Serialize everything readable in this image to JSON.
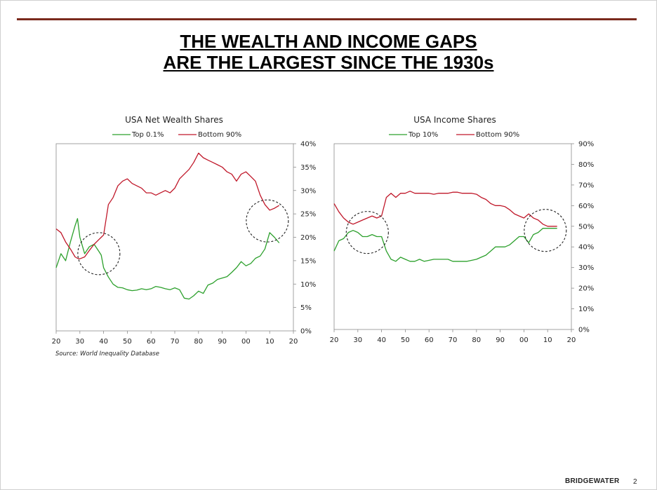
{
  "header": {
    "title_line1": "THE WEALTH AND INCOME GAPS",
    "title_line2": "ARE THE LARGEST SINCE THE 1930s"
  },
  "footer": {
    "source": "Source: World Inequality Database",
    "brand": "BRIDGEWATER",
    "page": "2"
  },
  "colors": {
    "accent_bar": "#7a2a1d",
    "top_series": "#2ca02c",
    "bottom_series": "#c0182a"
  },
  "chart_data": [
    {
      "type": "line",
      "title": "USA Net Wealth Shares",
      "xlabel": "",
      "ylabel": "",
      "x_ticks": [
        "20",
        "30",
        "40",
        "50",
        "60",
        "70",
        "80",
        "90",
        "00",
        "10",
        "20"
      ],
      "y_ticks": [
        "0%",
        "5%",
        "10%",
        "15%",
        "20%",
        "25%",
        "30%",
        "35%",
        "40%"
      ],
      "xlim": [
        1920,
        2020
      ],
      "ylim": [
        0,
        40
      ],
      "legend": "top",
      "x": [
        1920,
        1922,
        1924,
        1926,
        1928,
        1929,
        1930,
        1932,
        1934,
        1936,
        1938,
        1939,
        1940,
        1942,
        1944,
        1946,
        1948,
        1950,
        1952,
        1954,
        1956,
        1958,
        1960,
        1962,
        1964,
        1966,
        1968,
        1970,
        1972,
        1974,
        1976,
        1978,
        1980,
        1982,
        1984,
        1986,
        1988,
        1990,
        1992,
        1994,
        1996,
        1998,
        2000,
        2002,
        2004,
        2006,
        2008,
        2010,
        2012,
        2014
      ],
      "series": [
        {
          "name": "Top 0.1%",
          "color": "#2ca02c",
          "values": [
            13.5,
            16.5,
            15,
            19,
            22.5,
            24,
            20,
            16.5,
            18,
            18.5,
            17,
            16.2,
            13.5,
            11.5,
            10,
            9.3,
            9.2,
            8.8,
            8.6,
            8.7,
            9.0,
            8.8,
            9.0,
            9.5,
            9.3,
            9.0,
            8.8,
            9.2,
            8.8,
            7.0,
            6.8,
            7.5,
            8.5,
            8.0,
            9.8,
            10.2,
            11.0,
            11.3,
            11.6,
            12.5,
            13.5,
            14.8,
            13.9,
            14.4,
            15.5,
            16.0,
            17.5,
            21.0,
            20.0,
            18.8
          ]
        },
        {
          "name": "Bottom 90%",
          "color": "#c0182a",
          "values": [
            21.8,
            21.0,
            19.0,
            17.5,
            15.8,
            15.5,
            15.4,
            15.8,
            17.2,
            18.5,
            19.5,
            20.0,
            20.5,
            27.0,
            28.5,
            31.0,
            32.0,
            32.5,
            31.5,
            31.0,
            30.5,
            29.5,
            29.5,
            29.0,
            29.5,
            30.0,
            29.5,
            30.5,
            32.5,
            33.5,
            34.5,
            36.0,
            38.0,
            37.0,
            36.5,
            36.0,
            35.5,
            35.0,
            34.0,
            33.5,
            32.0,
            33.5,
            34.0,
            33.0,
            32.0,
            29.0,
            27.0,
            25.8,
            26.2,
            26.8
          ]
        }
      ],
      "annotations": [
        "circle ~1937 ~17%",
        "circle ~2009 ~23.5%"
      ]
    },
    {
      "type": "line",
      "title": "USA Income Shares",
      "xlabel": "",
      "ylabel": "",
      "x_ticks": [
        "20",
        "30",
        "40",
        "50",
        "60",
        "70",
        "80",
        "90",
        "00",
        "10",
        "20"
      ],
      "y_ticks": [
        "0%",
        "10%",
        "20%",
        "30%",
        "40%",
        "50%",
        "60%",
        "70%",
        "80%",
        "90%"
      ],
      "xlim": [
        1920,
        2020
      ],
      "ylim": [
        0,
        90
      ],
      "legend": "top",
      "x": [
        1920,
        1922,
        1924,
        1926,
        1928,
        1930,
        1932,
        1934,
        1936,
        1938,
        1940,
        1942,
        1944,
        1946,
        1948,
        1950,
        1952,
        1954,
        1956,
        1958,
        1960,
        1962,
        1964,
        1966,
        1968,
        1970,
        1972,
        1974,
        1976,
        1978,
        1980,
        1982,
        1984,
        1986,
        1988,
        1990,
        1992,
        1994,
        1996,
        1998,
        2000,
        2002,
        2004,
        2006,
        2008,
        2010,
        2012,
        2014
      ],
      "series": [
        {
          "name": "Top 10%",
          "color": "#2ca02c",
          "values": [
            38,
            43,
            44,
            47,
            48,
            47,
            45,
            45,
            46,
            45,
            45,
            38,
            34,
            33,
            35,
            34,
            33,
            33,
            34,
            33,
            33.5,
            34,
            34,
            34,
            34,
            33,
            33,
            33,
            33,
            33.5,
            34,
            35,
            36,
            38,
            40,
            40,
            40,
            41,
            43,
            45,
            45,
            42,
            46,
            47,
            49,
            49,
            49,
            49
          ]
        },
        {
          "name": "Bottom 90%",
          "color": "#c0182a",
          "values": [
            61,
            57,
            54,
            52,
            51,
            52,
            53,
            54,
            55,
            54,
            55,
            64,
            66,
            64,
            66,
            66,
            67,
            66,
            66,
            66,
            66,
            65.5,
            66,
            66,
            66,
            66.5,
            66.5,
            66,
            66,
            66,
            65.5,
            64,
            63,
            61,
            60,
            60,
            59.5,
            58,
            56,
            55,
            54,
            56,
            54,
            53,
            51,
            50,
            50,
            50
          ]
        }
      ],
      "annotations": [
        "circle ~1934 ~47%",
        "circle ~2009 ~48%"
      ]
    }
  ]
}
